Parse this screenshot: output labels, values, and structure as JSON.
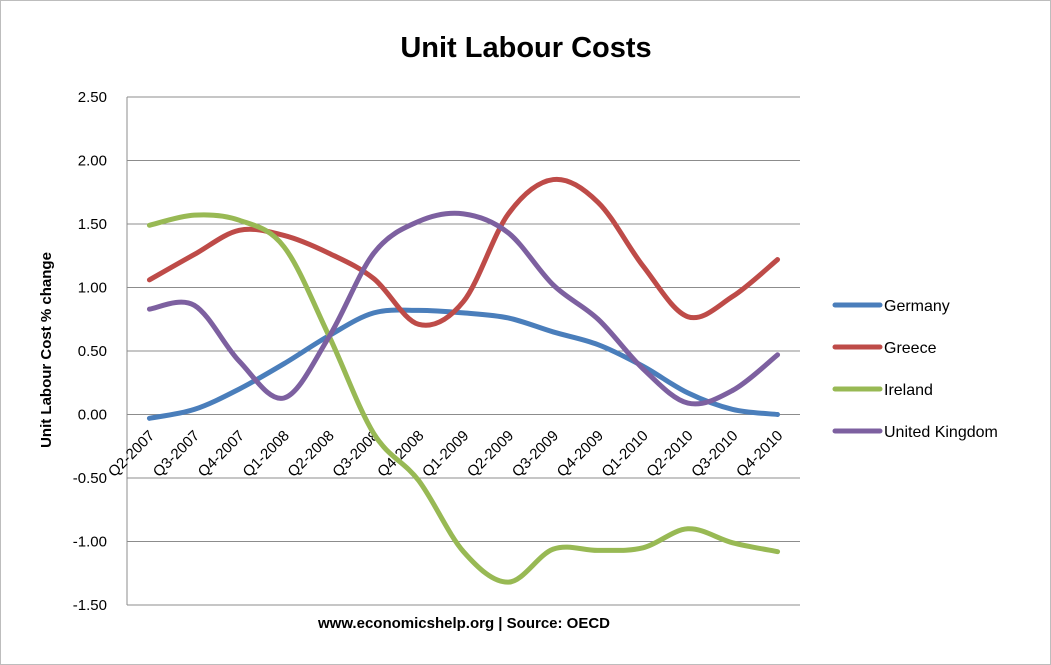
{
  "chart_data": {
    "type": "line",
    "title": "Unit Labour Costs",
    "xlabel": "www.economicshelp.org | Source: OECD",
    "ylabel": "Unit Labour Cost % change",
    "ylim": [
      -1.5,
      2.5
    ],
    "yticks": [
      "2.50",
      "2.00",
      "1.50",
      "1.00",
      "0.50",
      "0.00",
      "-0.50",
      "-1.00",
      "-1.50"
    ],
    "grid": true,
    "legend_position": "right",
    "categories": [
      "Q2-2007",
      "Q3-2007",
      "Q4-2007",
      "Q1-2008",
      "Q2-2008",
      "Q3-2008",
      "Q4-2008",
      "Q1-2009",
      "Q2-2009",
      "Q3-2009",
      "Q4-2009",
      "Q1-2010",
      "Q2-2010",
      "Q3-2010",
      "Q4-2010"
    ],
    "series": [
      {
        "name": "Germany",
        "color": "#4a7ebb",
        "values": [
          -0.03,
          0.04,
          0.2,
          0.4,
          0.62,
          0.8,
          0.82,
          0.8,
          0.76,
          0.65,
          0.55,
          0.38,
          0.17,
          0.04,
          0.0
        ]
      },
      {
        "name": "Greece",
        "color": "#be4b48",
        "values": [
          1.06,
          1.26,
          1.45,
          1.41,
          1.27,
          1.07,
          0.71,
          0.89,
          1.58,
          1.85,
          1.67,
          1.17,
          0.77,
          0.93,
          1.22
        ]
      },
      {
        "name": "Ireland",
        "color": "#98b954",
        "values": [
          1.49,
          1.57,
          1.53,
          1.32,
          0.62,
          -0.15,
          -0.52,
          -1.08,
          -1.32,
          -1.06,
          -1.07,
          -1.05,
          -0.9,
          -1.01,
          -1.08
        ]
      },
      {
        "name": "United Kingdom",
        "color": "#7d60a0",
        "values": [
          0.83,
          0.86,
          0.42,
          0.13,
          0.61,
          1.27,
          1.52,
          1.58,
          1.43,
          1.02,
          0.75,
          0.36,
          0.09,
          0.19,
          0.47
        ]
      }
    ]
  }
}
